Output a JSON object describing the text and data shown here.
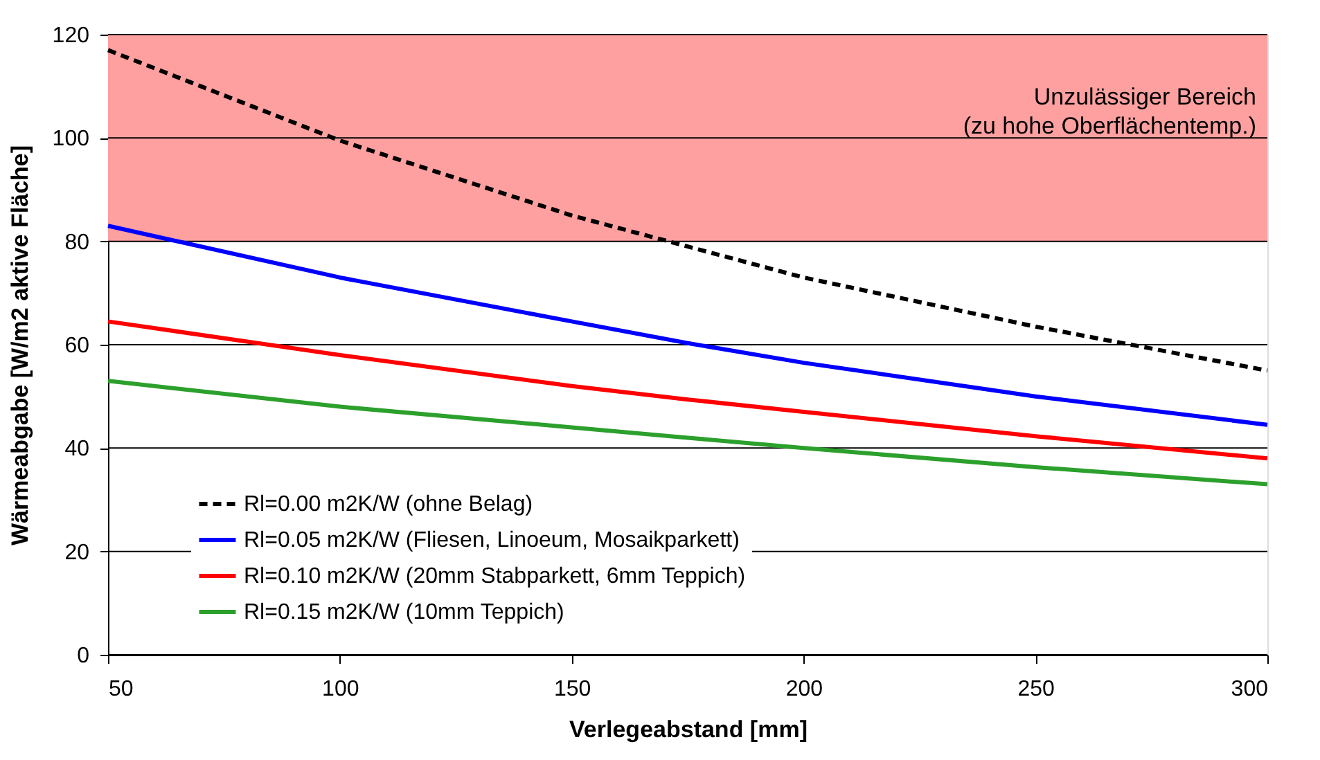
{
  "chart_data": {
    "type": "line",
    "xlabel": "Verlegeabstand [mm]",
    "ylabel": "Wärmeabgabe [W/m2 aktive Fläche]",
    "x": [
      50,
      100,
      150,
      175,
      200,
      250,
      300
    ],
    "xlim": [
      50,
      300
    ],
    "xticks": [
      50,
      100,
      150,
      200,
      250,
      300
    ],
    "ylim": [
      0,
      120
    ],
    "yticks": [
      0,
      20,
      40,
      60,
      80,
      100,
      120
    ],
    "grid": "y",
    "legend": "bottom left",
    "marker": "none",
    "bands": [
      {
        "axis": "y",
        "from": 80,
        "to": 120,
        "label": "Unzulässiger Bereich\n(zu hohe Oberflächentemp.)",
        "color": "#ffa0a0"
      }
    ],
    "series": [
      {
        "name": "Rl=0.00 m2K/W (ohne Belag)",
        "color": "#000000",
        "line_style": "dashed",
        "values": [
          117,
          99.5,
          85,
          79,
          73,
          63.5,
          55
        ]
      },
      {
        "name": "Rl=0.05 m2K/W (Fliesen, Linoeum, Mosaikparkett)",
        "color": "#0000ff",
        "line_style": "solid",
        "values": [
          83,
          73,
          64.5,
          60.3,
          56.5,
          50,
          44.5
        ]
      },
      {
        "name": "Rl=0.10 m2K/W (20mm Stabparkett, 6mm Teppich)",
        "color": "#ff0000",
        "line_style": "solid",
        "values": [
          64.5,
          58,
          52,
          49.4,
          47,
          42.3,
          38
        ]
      },
      {
        "name": "Rl=0.15 m2K/W (10mm Teppich)",
        "color": "#2ca02c",
        "line_style": "solid",
        "values": [
          53,
          48,
          44,
          42,
          40,
          36.3,
          33
        ]
      }
    ]
  }
}
